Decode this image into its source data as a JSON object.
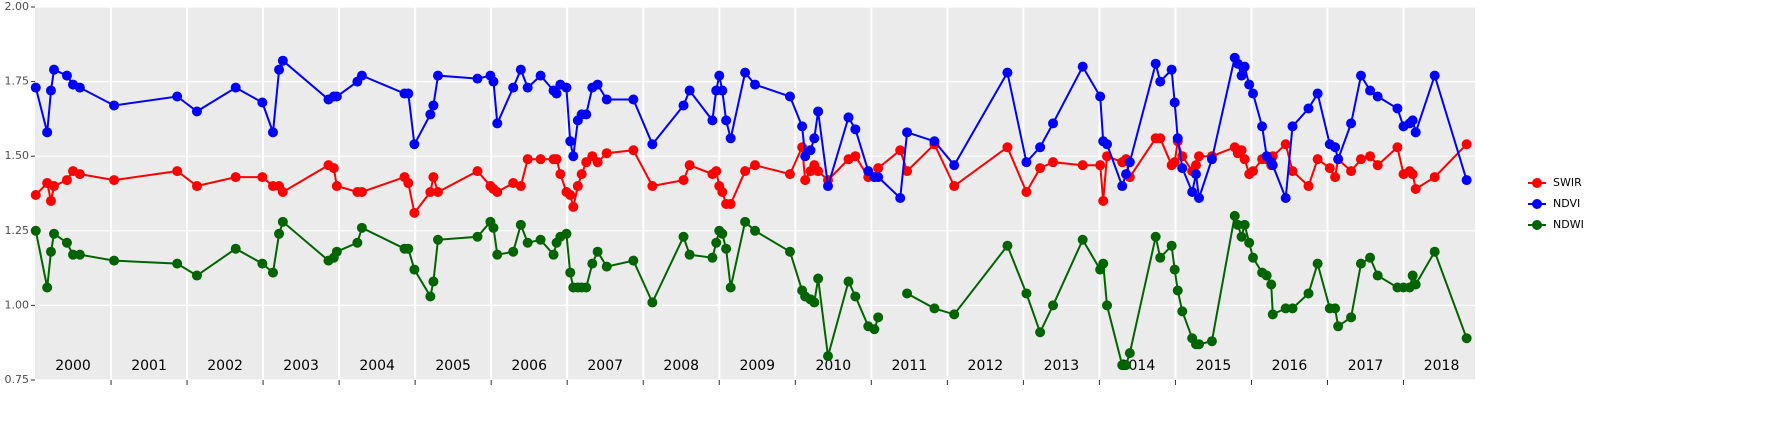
{
  "chart_data": {
    "type": "line",
    "x": [
      2000.01,
      2000.16,
      2000.21,
      2000.25,
      2000.42,
      2000.5,
      2000.59,
      2001.04,
      2001.87,
      2002.13,
      2002.64,
      2002.99,
      2003.13,
      2003.21,
      2003.26,
      2003.86,
      2003.93,
      2003.97,
      2004.24,
      2004.3,
      2004.86,
      2004.91,
      2004.99,
      2005.2,
      2005.24,
      2005.3,
      2005.82,
      2005.99,
      2006.03,
      2006.08,
      2006.29,
      2006.39,
      2006.48,
      2006.65,
      2006.82,
      2006.86,
      2006.91,
      2006.99,
      2007.04,
      2007.08,
      2007.14,
      2007.19,
      2007.25,
      2007.33,
      2007.4,
      2007.52,
      2007.87,
      2008.12,
      2008.53,
      2008.61,
      2008.91,
      2008.96,
      2009.0,
      2009.04,
      2009.09,
      2009.15,
      2009.34,
      2009.47,
      2009.93,
      2010.09,
      2010.13,
      2010.2,
      2010.25,
      2010.3,
      2010.43,
      2010.7,
      2010.79,
      2010.96,
      2011.04,
      2011.09,
      2011.38,
      2011.47,
      2011.83,
      2012.09,
      2012.79,
      2013.04,
      2013.22,
      2013.39,
      2013.78,
      2014.01,
      2014.05,
      2014.1,
      2014.3,
      2014.35,
      2014.4,
      2014.74,
      2014.8,
      2014.95,
      2014.99,
      2015.03,
      2015.09,
      2015.22,
      2015.27,
      2015.31,
      2015.48,
      2015.78,
      2015.82,
      2015.87,
      2015.91,
      2015.97,
      2016.02,
      2016.14,
      2016.2,
      2016.26,
      2016.28,
      2016.45,
      2016.54,
      2016.75,
      2016.87,
      2017.03,
      2017.1,
      2017.14,
      2017.31,
      2017.44,
      2017.56,
      2017.66,
      2017.92,
      2018.0,
      2018.08,
      2018.12,
      2018.16,
      2018.41,
      2018.83
    ],
    "series": [
      {
        "name": "SWIR",
        "color": "#ff0000",
        "values": [
          1.37,
          1.41,
          1.35,
          1.4,
          1.42,
          1.45,
          1.44,
          1.42,
          1.45,
          1.4,
          1.43,
          1.43,
          1.4,
          1.4,
          1.38,
          1.47,
          1.46,
          1.4,
          1.38,
          1.38,
          1.43,
          1.41,
          1.31,
          1.38,
          1.43,
          1.38,
          1.45,
          1.4,
          1.39,
          1.38,
          1.41,
          1.4,
          1.49,
          1.49,
          1.49,
          1.49,
          1.44,
          1.38,
          1.37,
          1.33,
          1.4,
          1.44,
          1.48,
          1.5,
          1.48,
          1.51,
          1.52,
          1.4,
          1.42,
          1.47,
          1.44,
          1.45,
          1.4,
          1.38,
          1.34,
          1.34,
          1.45,
          1.47,
          1.44,
          1.53,
          1.42,
          1.45,
          1.47,
          1.45,
          1.42,
          1.49,
          1.5,
          1.43,
          1.43,
          1.46,
          1.52,
          1.45,
          1.54,
          1.4,
          1.53,
          1.38,
          1.46,
          1.48,
          1.47,
          1.47,
          1.35,
          1.5,
          1.48,
          1.49,
          1.43,
          1.56,
          1.56,
          1.47,
          1.48,
          1.55,
          1.5,
          1.45,
          1.47,
          1.5,
          1.5,
          1.53,
          1.51,
          1.52,
          1.49,
          1.44,
          1.45,
          1.49,
          1.49,
          1.47,
          1.5,
          1.54,
          1.45,
          1.4,
          1.49,
          1.46,
          1.43,
          1.49,
          1.45,
          1.49,
          1.5,
          1.47,
          1.53,
          1.44,
          1.45,
          1.44,
          1.39,
          1.43,
          1.54
        ]
      },
      {
        "name": "NDVI",
        "color": "#0000ff",
        "values": [
          1.73,
          1.58,
          1.72,
          1.79,
          1.77,
          1.74,
          1.73,
          1.67,
          1.7,
          1.65,
          1.73,
          1.68,
          1.58,
          1.79,
          1.82,
          1.69,
          1.7,
          1.7,
          1.75,
          1.77,
          1.71,
          1.71,
          1.54,
          1.64,
          1.67,
          1.77,
          1.76,
          1.77,
          1.75,
          1.61,
          1.73,
          1.79,
          1.73,
          1.77,
          1.72,
          1.71,
          1.74,
          1.73,
          1.55,
          1.5,
          1.62,
          1.64,
          1.64,
          1.73,
          1.74,
          1.69,
          1.69,
          1.54,
          1.67,
          1.72,
          1.62,
          1.72,
          1.77,
          1.72,
          1.62,
          1.56,
          1.78,
          1.74,
          1.7,
          1.6,
          1.5,
          1.52,
          1.56,
          1.65,
          1.4,
          1.63,
          1.59,
          1.45,
          1.43,
          1.43,
          1.36,
          1.58,
          1.55,
          1.47,
          1.78,
          1.48,
          1.53,
          1.61,
          1.8,
          1.7,
          1.55,
          1.54,
          1.4,
          1.44,
          1.48,
          1.81,
          1.75,
          1.79,
          1.68,
          1.56,
          1.46,
          1.38,
          1.44,
          1.36,
          1.49,
          1.83,
          1.81,
          1.77,
          1.8,
          1.74,
          1.71,
          1.6,
          1.5,
          1.48,
          1.47,
          1.36,
          1.6,
          1.66,
          1.71,
          1.54,
          1.53,
          1.49,
          1.61,
          1.77,
          1.72,
          1.7,
          1.66,
          1.6,
          1.61,
          1.62,
          1.58,
          1.77,
          1.42
        ]
      },
      {
        "name": "NDWI",
        "color": "#006400",
        "values": [
          1.25,
          1.06,
          1.18,
          1.24,
          1.21,
          1.17,
          1.17,
          1.15,
          1.14,
          1.1,
          1.19,
          1.14,
          1.11,
          1.24,
          1.28,
          1.15,
          1.16,
          1.18,
          1.21,
          1.26,
          1.19,
          1.19,
          1.12,
          1.03,
          1.08,
          1.22,
          1.23,
          1.28,
          1.26,
          1.17,
          1.18,
          1.27,
          1.21,
          1.22,
          1.17,
          1.21,
          1.23,
          1.24,
          1.11,
          1.06,
          1.06,
          1.06,
          1.06,
          1.14,
          1.18,
          1.13,
          1.15,
          1.01,
          1.23,
          1.17,
          1.16,
          1.21,
          1.25,
          1.24,
          1.19,
          1.06,
          1.28,
          1.25,
          1.18,
          1.05,
          1.03,
          1.02,
          1.01,
          1.09,
          0.83,
          1.08,
          1.03,
          0.93,
          0.92,
          0.96,
          null,
          1.04,
          0.99,
          0.97,
          1.2,
          1.04,
          0.91,
          1.0,
          1.22,
          1.12,
          1.14,
          1.0,
          0.8,
          0.8,
          0.84,
          1.23,
          1.16,
          1.2,
          1.12,
          1.05,
          0.98,
          0.89,
          0.87,
          0.87,
          0.88,
          1.3,
          1.27,
          1.23,
          1.27,
          1.21,
          1.16,
          1.11,
          1.1,
          1.07,
          0.97,
          0.99,
          0.99,
          1.04,
          1.14,
          0.99,
          0.99,
          0.93,
          0.96,
          1.14,
          1.16,
          1.1,
          1.06,
          1.06,
          1.06,
          1.1,
          1.07,
          1.18,
          0.89
        ]
      }
    ],
    "xlim": [
      2000,
      2018.94
    ],
    "xticks": [
      {
        "value": 2000.5,
        "label": "2000"
      },
      {
        "value": 2001.5,
        "label": "2001"
      },
      {
        "value": 2002.5,
        "label": "2002"
      },
      {
        "value": 2003.5,
        "label": "2003"
      },
      {
        "value": 2004.5,
        "label": "2004"
      },
      {
        "value": 2005.5,
        "label": "2005"
      },
      {
        "value": 2006.5,
        "label": "2006"
      },
      {
        "value": 2007.5,
        "label": "2007"
      },
      {
        "value": 2008.5,
        "label": "2008"
      },
      {
        "value": 2009.5,
        "label": "2009"
      },
      {
        "value": 2010.5,
        "label": "2010"
      },
      {
        "value": 2011.5,
        "label": "2011"
      },
      {
        "value": 2012.5,
        "label": "2012"
      },
      {
        "value": 2013.5,
        "label": "2013"
      },
      {
        "value": 2014.5,
        "label": "2014"
      },
      {
        "value": 2015.5,
        "label": "2015"
      },
      {
        "value": 2016.5,
        "label": "2016"
      },
      {
        "value": 2017.5,
        "label": "2017"
      },
      {
        "value": 2018.5,
        "label": "2018"
      }
    ],
    "xgrid": [
      2001,
      2002,
      2003,
      2004,
      2005,
      2006,
      2007,
      2008,
      2009,
      2010,
      2011,
      2012,
      2013,
      2014,
      2015,
      2016,
      2017,
      2018
    ],
    "ylim": [
      0.75,
      2.0
    ],
    "yticks": [
      {
        "value": 0.75,
        "label": "0.75"
      },
      {
        "value": 1,
        "label": "1.00"
      },
      {
        "value": 1.25,
        "label": "1.25"
      },
      {
        "value": 1.5,
        "label": "1.50"
      },
      {
        "value": 1.75,
        "label": "1.75"
      },
      {
        "value": 2,
        "label": "2.00"
      }
    ],
    "grid": true,
    "legend": "right"
  }
}
